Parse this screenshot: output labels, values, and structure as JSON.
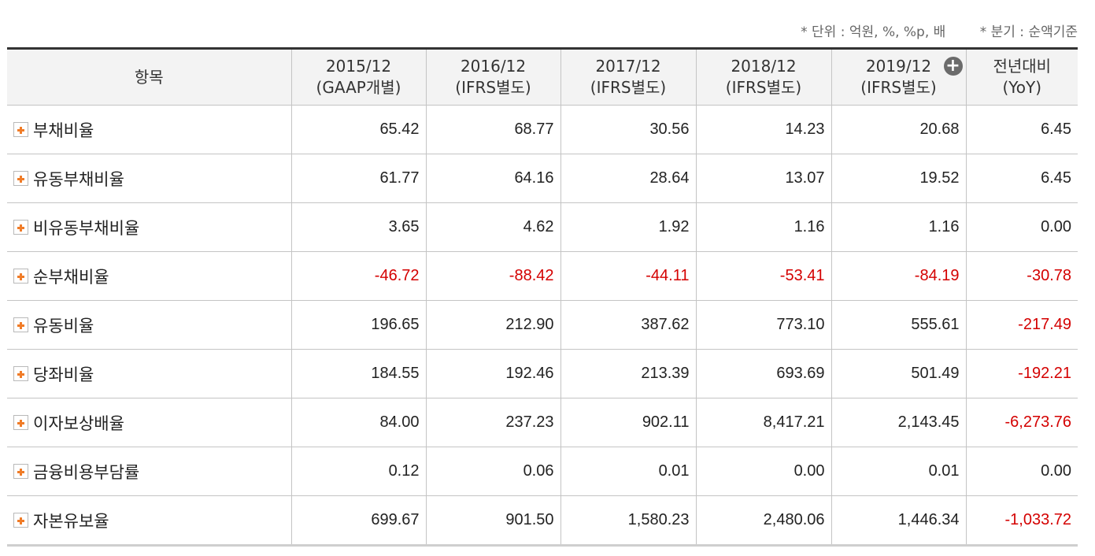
{
  "notes": {
    "unit": "* 단위 : 억원, %, %p, 배",
    "basis": "* 분기 : 순액기준"
  },
  "header": {
    "item_label": "항목",
    "columns": [
      {
        "line1": "2015/12",
        "line2": "(GAAP개별)"
      },
      {
        "line1": "2016/12",
        "line2": "(IFRS별도)"
      },
      {
        "line1": "2017/12",
        "line2": "(IFRS별도)"
      },
      {
        "line1": "2018/12",
        "line2": "(IFRS별도)"
      },
      {
        "line1": "2019/12",
        "line2": "(IFRS별도)"
      },
      {
        "line1": "전년대비",
        "line2": "(YoY)"
      }
    ],
    "expand_icon": "plus-circle-icon"
  },
  "rows": [
    {
      "label": "부채비율",
      "values": [
        "65.42",
        "68.77",
        "30.56",
        "14.23",
        "20.68",
        "6.45"
      ]
    },
    {
      "label": "유동부채비율",
      "values": [
        "61.77",
        "64.16",
        "28.64",
        "13.07",
        "19.52",
        "6.45"
      ]
    },
    {
      "label": "비유동부채비율",
      "values": [
        "3.65",
        "4.62",
        "1.92",
        "1.16",
        "1.16",
        "0.00"
      ]
    },
    {
      "label": "순부채비율",
      "values": [
        "-46.72",
        "-88.42",
        "-44.11",
        "-53.41",
        "-84.19",
        "-30.78"
      ]
    },
    {
      "label": "유동비율",
      "values": [
        "196.65",
        "212.90",
        "387.62",
        "773.10",
        "555.61",
        "-217.49"
      ]
    },
    {
      "label": "당좌비율",
      "values": [
        "184.55",
        "192.46",
        "213.39",
        "693.69",
        "501.49",
        "-192.21"
      ]
    },
    {
      "label": "이자보상배율",
      "values": [
        "84.00",
        "237.23",
        "902.11",
        "8,417.21",
        "2,143.45",
        "-6,273.76"
      ]
    },
    {
      "label": "금융비용부담률",
      "values": [
        "0.12",
        "0.06",
        "0.01",
        "0.00",
        "0.01",
        "0.00"
      ]
    },
    {
      "label": "자본유보율",
      "values": [
        "699.67",
        "901.50",
        "1,580.23",
        "2,480.06",
        "1,446.34",
        "-1,033.72"
      ]
    }
  ],
  "colors": {
    "negative": "#d40000",
    "expand_accent": "#f07c28",
    "header_bg": "#f3f3f3"
  }
}
